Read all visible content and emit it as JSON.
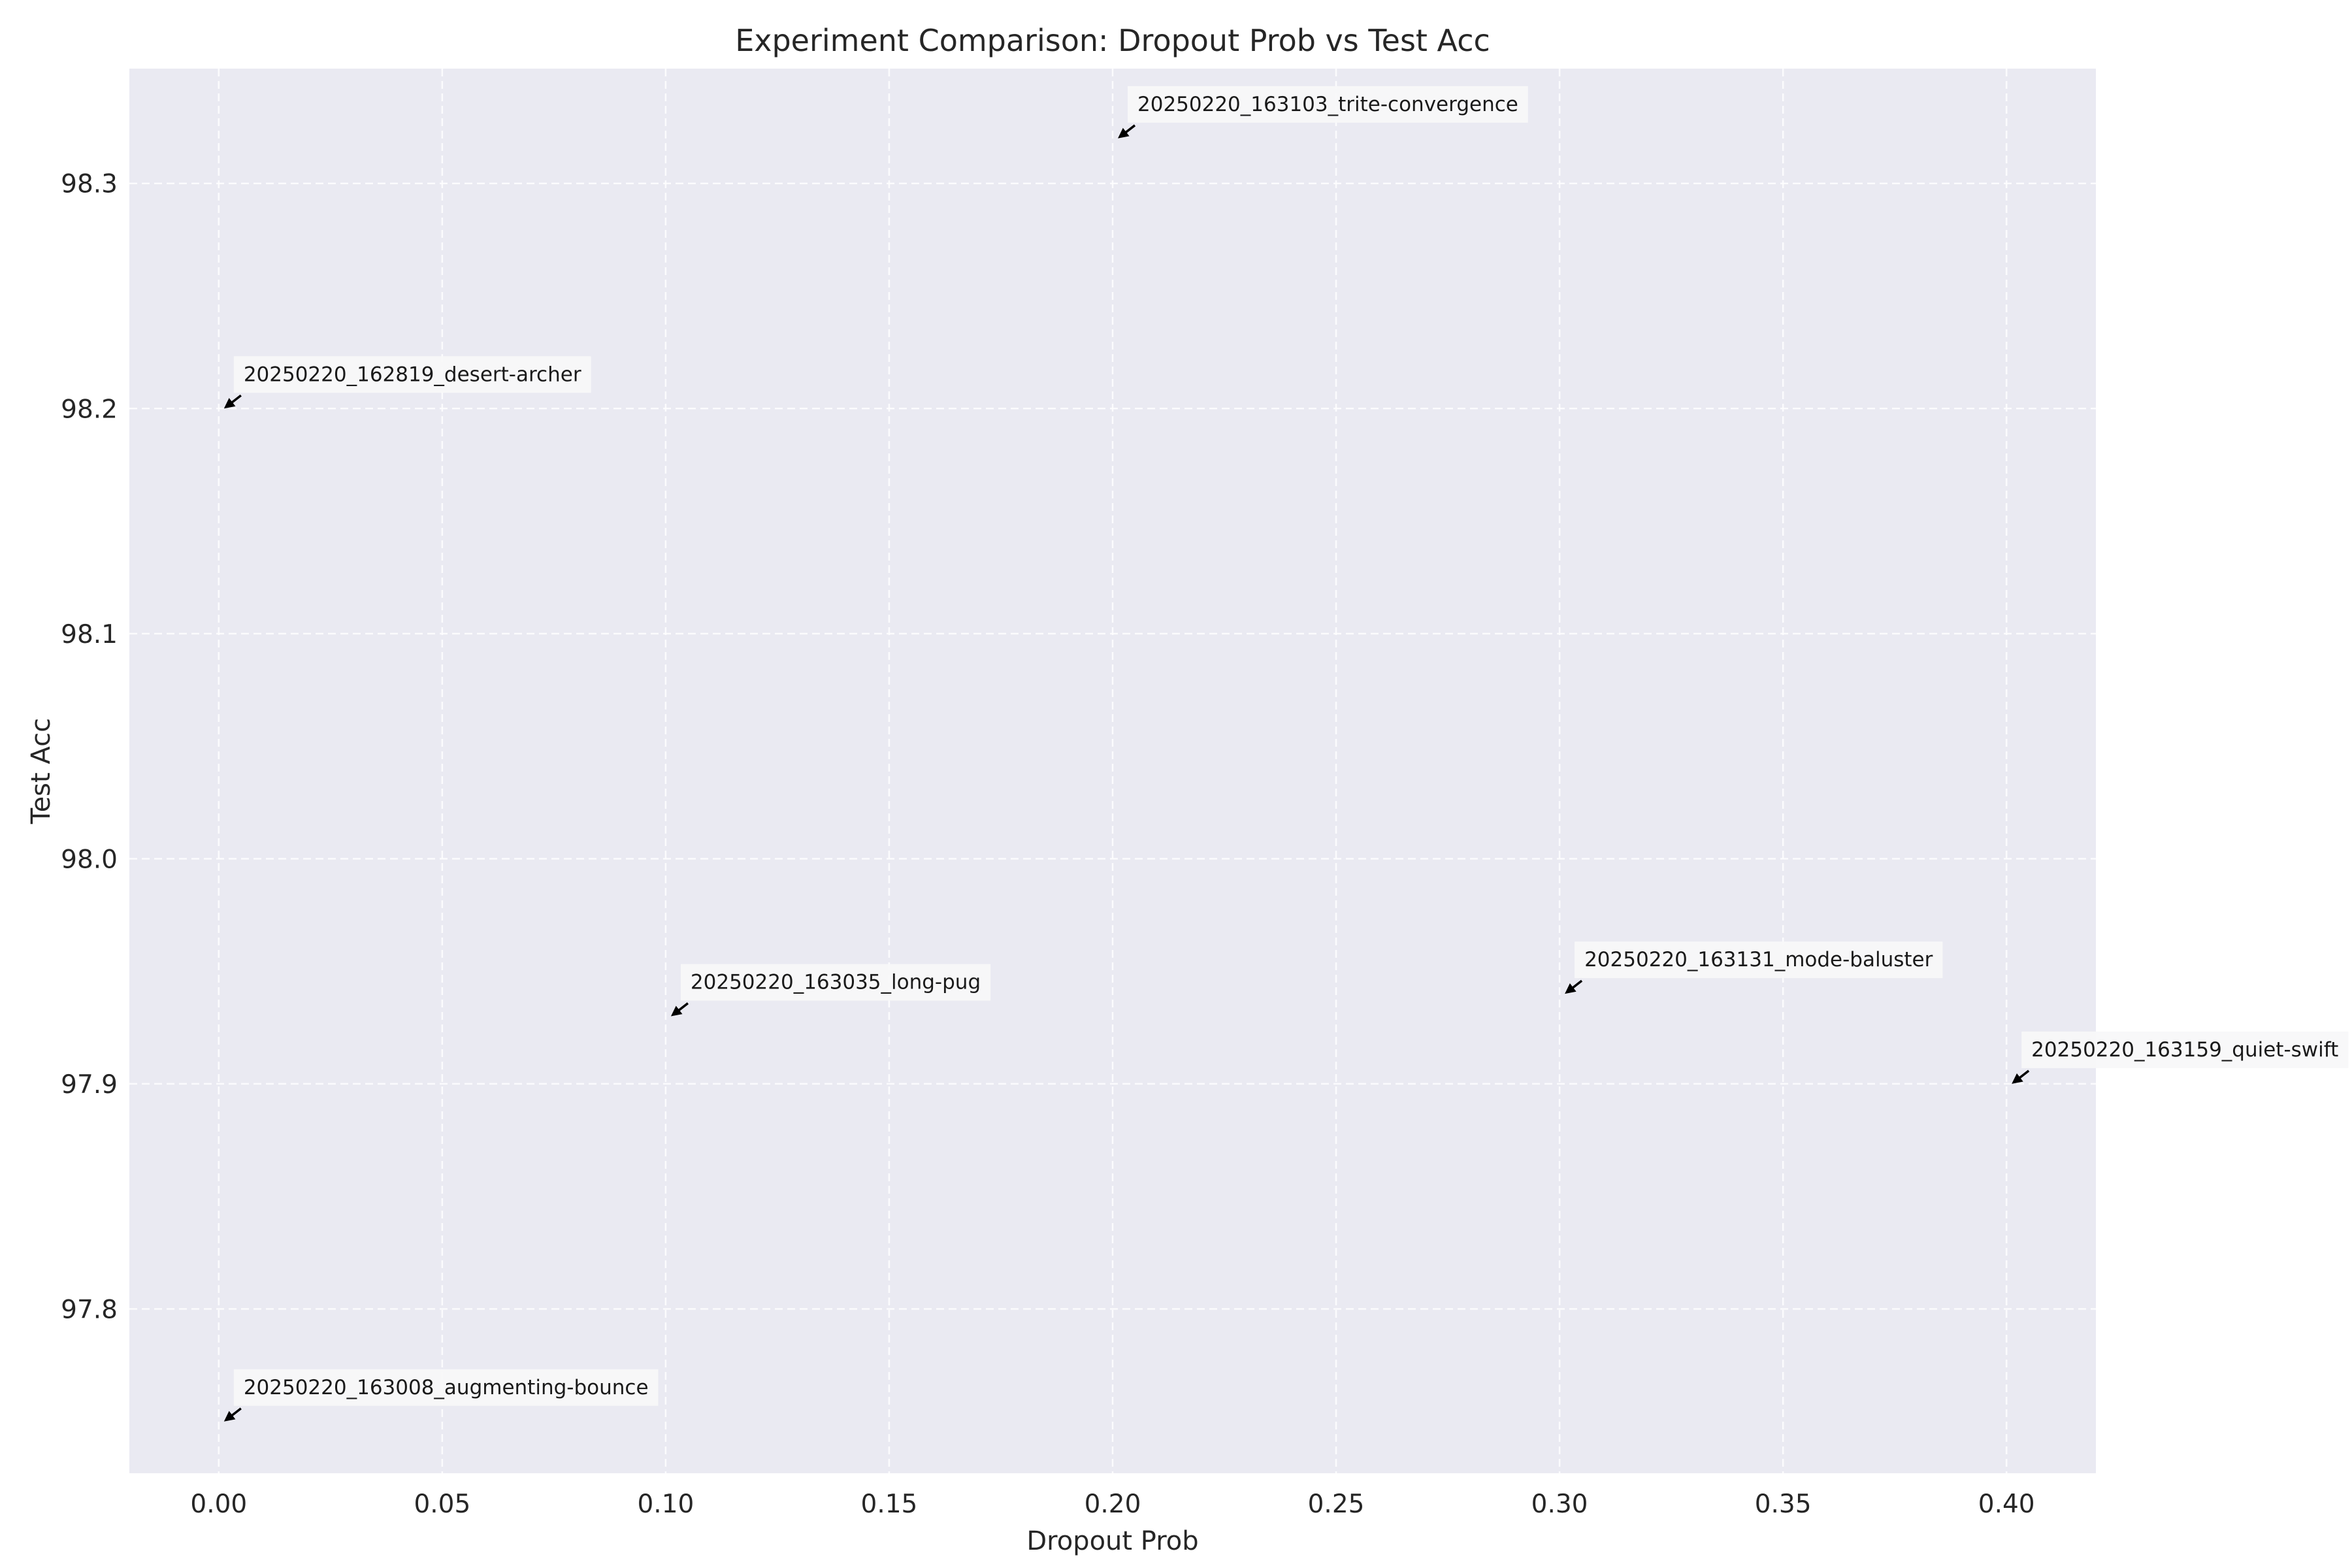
{
  "chart_data": {
    "type": "scatter",
    "title": "Experiment Comparison: Dropout Prob vs Test Acc",
    "xlabel": "Dropout Prob",
    "ylabel": "Test Acc",
    "xlim": [
      -0.02,
      0.42
    ],
    "ylim": [
      97.727,
      98.351
    ],
    "xticks": [
      "0.00",
      "0.05",
      "0.10",
      "0.15",
      "0.20",
      "0.25",
      "0.30",
      "0.35",
      "0.40"
    ],
    "yticks": [
      "97.8",
      "97.9",
      "98.0",
      "98.1",
      "98.2",
      "98.3"
    ],
    "grid": true,
    "background_color": "#eaeaf2",
    "points": [
      {
        "x": 0.0,
        "y": 98.2,
        "label": "20250220_162819_desert-archer"
      },
      {
        "x": 0.0,
        "y": 97.75,
        "label": "20250220_163008_augmenting-bounce"
      },
      {
        "x": 0.1,
        "y": 97.93,
        "label": "20250220_163035_long-pug"
      },
      {
        "x": 0.2,
        "y": 98.32,
        "label": "20250220_163103_trite-convergence"
      },
      {
        "x": 0.3,
        "y": 97.94,
        "label": "20250220_163131_mode-baluster"
      },
      {
        "x": 0.4,
        "y": 97.9,
        "label": "20250220_163159_quiet-swift"
      }
    ]
  }
}
